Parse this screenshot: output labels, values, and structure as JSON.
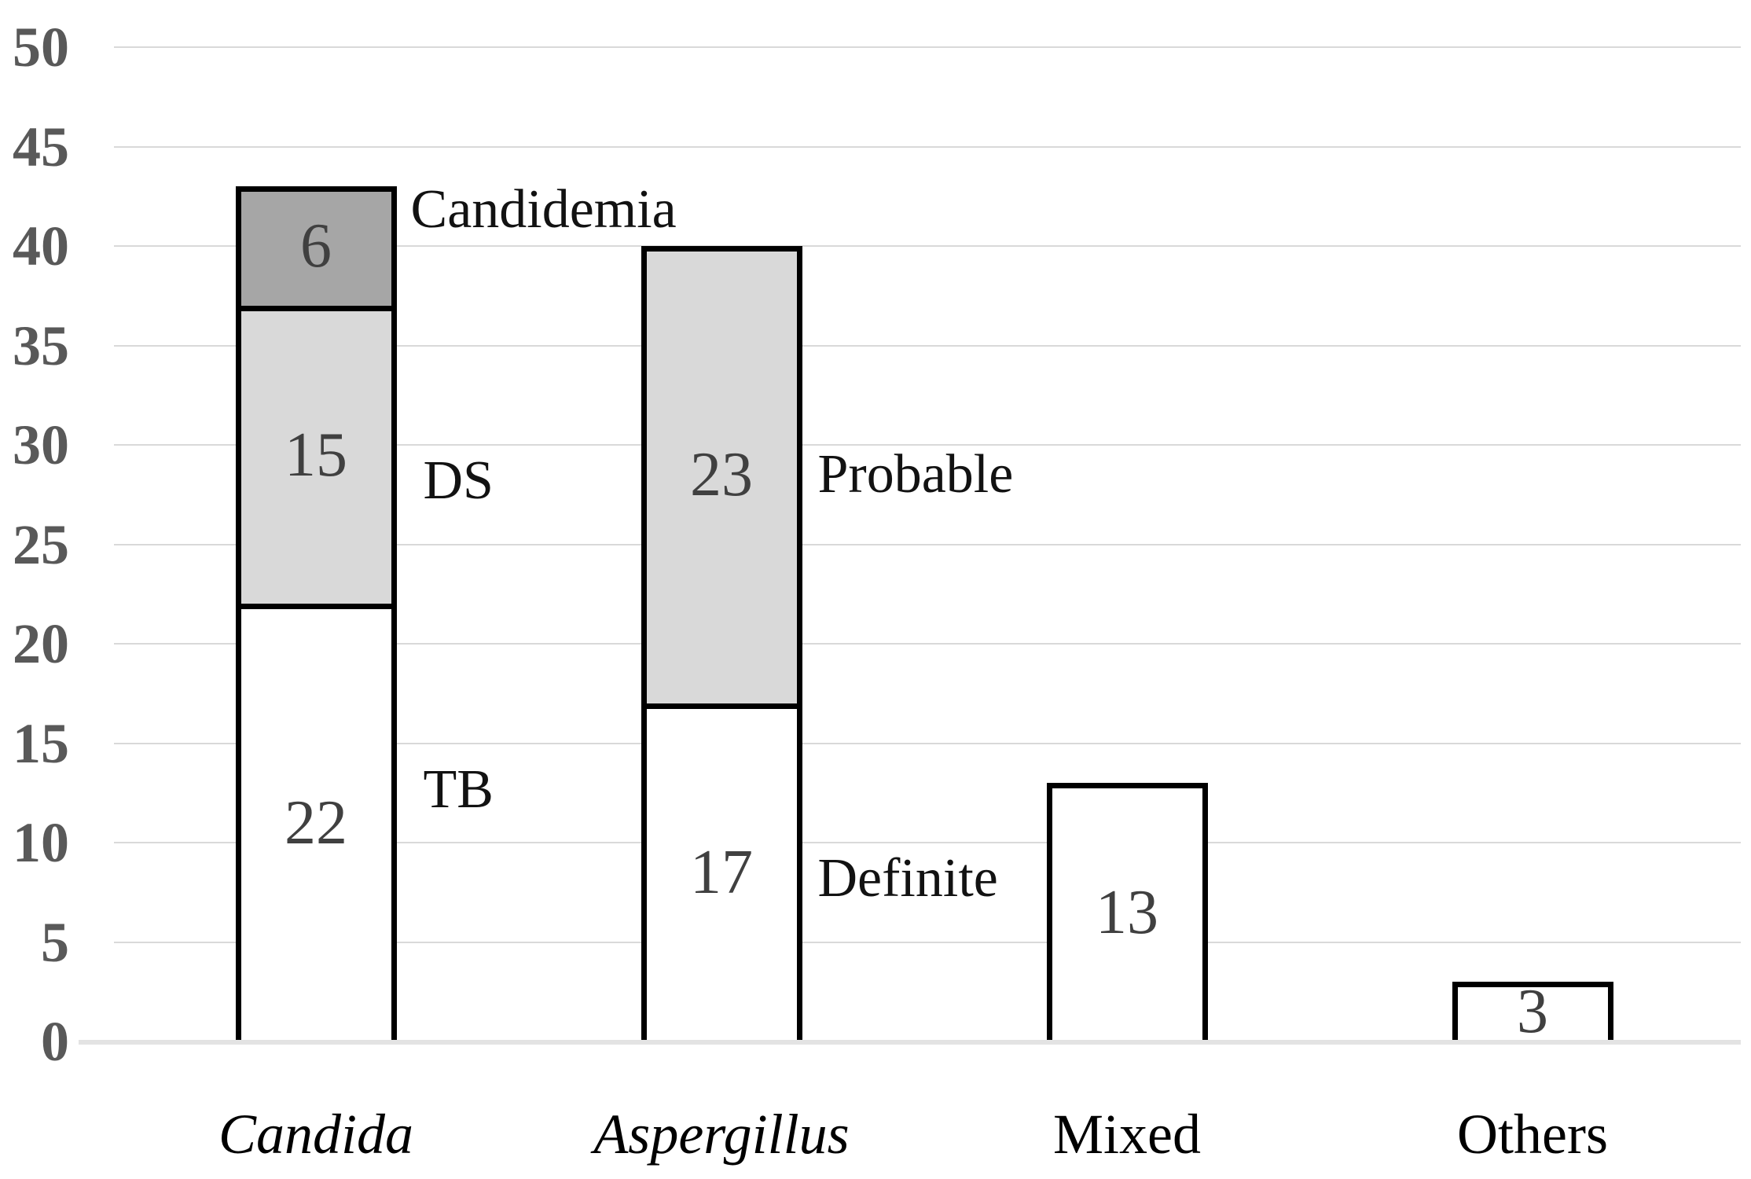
{
  "chart_data": {
    "type": "bar",
    "stacked": true,
    "title": "",
    "xlabel": "",
    "ylabel": "",
    "legend": "none",
    "gridlines": true,
    "y_axis": {
      "min": 0,
      "max": 50,
      "step": 5,
      "tick_labels": [
        "0",
        "5",
        "10",
        "15",
        "20",
        "25",
        "30",
        "35",
        "40",
        "45",
        "50"
      ]
    },
    "categories": [
      {
        "label": "Candida",
        "italic": true,
        "total": 43,
        "segments": [
          {
            "value": 22,
            "shade": "white",
            "annotation": "TB"
          },
          {
            "value": 15,
            "shade": "light_gray",
            "annotation": "DS"
          },
          {
            "value": 6,
            "shade": "dark_gray",
            "annotation": "Candidemia"
          }
        ]
      },
      {
        "label": "Aspergillus",
        "italic": true,
        "total": 40,
        "segments": [
          {
            "value": 17,
            "shade": "white",
            "annotation": "Definite"
          },
          {
            "value": 23,
            "shade": "light_gray",
            "annotation": "Probable"
          }
        ]
      },
      {
        "label": "Mixed",
        "italic": false,
        "total": 13,
        "segments": [
          {
            "value": 13,
            "shade": "white"
          }
        ]
      },
      {
        "label": "Others",
        "italic": false,
        "total": 3,
        "segments": [
          {
            "value": 3,
            "shade": "white"
          }
        ]
      }
    ],
    "colors": {
      "white": "#ffffff",
      "light_gray": "#d9d9d9",
      "dark_gray": "#a6a6a6",
      "bar_border": "#000000",
      "gridline": "#d9d9d9",
      "baseline": "#e3e3e3",
      "axis_tick_text": "#595959",
      "value_text": "#404040",
      "annotation_text": "#121212",
      "category_text": "#000000"
    }
  }
}
